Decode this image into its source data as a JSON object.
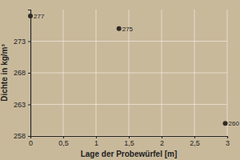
{
  "chart_data": {
    "type": "scatter",
    "xlabel": "Lage der Probewürfel [m]",
    "ylabel": "Dichte in kg/m³",
    "x": [
      0,
      1.35,
      2.97
    ],
    "values": [
      277,
      275,
      260
    ],
    "color": "#2f2a25",
    "marker": "circle",
    "data_labels": true,
    "xlim": [
      0,
      3
    ],
    "xticks": [
      0,
      {
        "value": 0.5,
        "label": "0,5"
      },
      1,
      {
        "value": 1.5,
        "label": "1,5"
      },
      2,
      {
        "value": 2.5,
        "label": "2,5"
      },
      3
    ],
    "ylim": [
      258,
      278
    ],
    "yticks": [
      258,
      263,
      268,
      273
    ],
    "grid": true
  }
}
